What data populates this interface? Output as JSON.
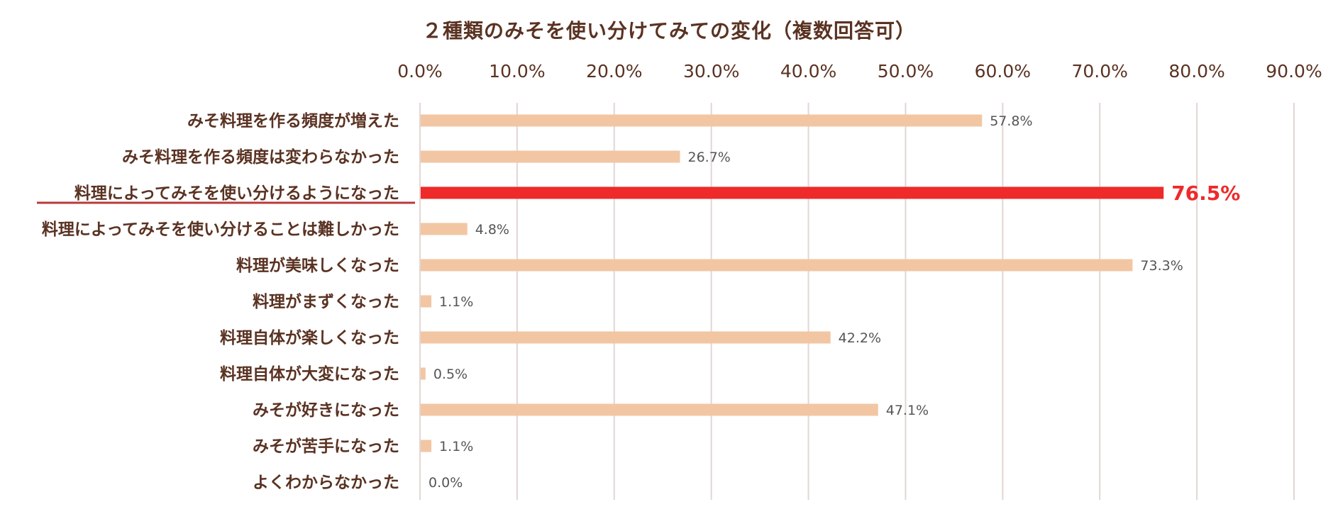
{
  "chart_data": {
    "type": "bar",
    "orientation": "horizontal",
    "title": "２種類のみそを使い分けてみての変化（複数回答可）",
    "xlabel": "",
    "ylabel": "",
    "xlim": [
      0,
      90
    ],
    "ticks": [
      "0.0%",
      "10.0%",
      "20.0%",
      "30.0%",
      "40.0%",
      "50.0%",
      "60.0%",
      "70.0%",
      "80.0%",
      "90.0%"
    ],
    "grid": true,
    "categories": [
      "みそ料理を作る頻度が増えた",
      "みそ料理を作る頻度は変わらなかった",
      "料理によってみそを使い分けるようになった",
      "料理によってみそを使い分けることは難しかった",
      "料理が美味しくなった",
      "料理がまずくなった",
      "料理自体が楽しくなった",
      "料理自体が大変になった",
      "みそが好きになった",
      "みそが苦手になった",
      "よくわからなかった"
    ],
    "values": [
      57.8,
      26.7,
      76.5,
      4.8,
      73.3,
      1.1,
      42.2,
      0.5,
      47.1,
      1.1,
      0.0
    ],
    "value_labels": [
      "57.8%",
      "26.7%",
      "76.5%",
      "4.8%",
      "73.3%",
      "1.1%",
      "42.2%",
      "0.5%",
      "47.1%",
      "1.1%",
      "0.0%"
    ],
    "highlight_index": 2,
    "colors": {
      "bar": "#f2c6a3",
      "highlight": "#ee2a2a",
      "grid": "#e3d6d3",
      "text": "#5a3222",
      "value_text": "#555555",
      "underline": "#b83a3a"
    }
  }
}
